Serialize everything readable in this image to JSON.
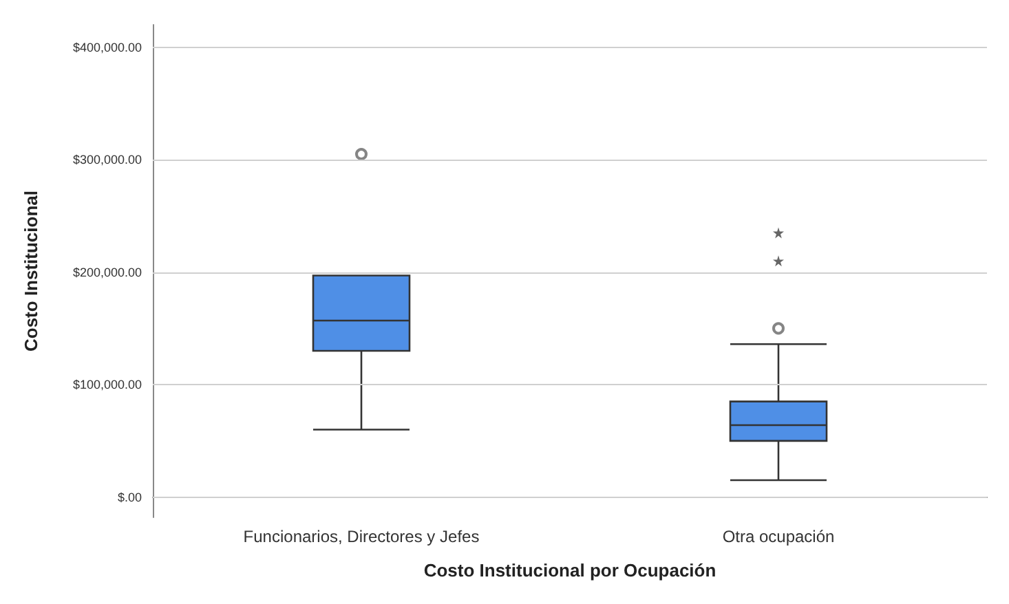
{
  "chart_data": {
    "type": "box",
    "xlabel": "Costo Institucional por Ocupación",
    "ylabel": "Costo Institucional",
    "categories": [
      "Funcionarios, Directores y Jefes",
      "Otra ocupación"
    ],
    "series": [
      {
        "type": "box",
        "color": "#4f8fe6",
        "boxes": [
          {
            "low": 60000,
            "q1": 130000,
            "median": 157000,
            "q3": 197000,
            "high": 197000,
            "outliers": [
              305000
            ]
          },
          {
            "low": 15000,
            "q1": 50000,
            "median": 64000,
            "q3": 85000,
            "high": 136000,
            "outliers": [
              150000
            ]
          }
        ]
      },
      {
        "type": "scatter",
        "marker": "star",
        "color": "#404040",
        "x": [
          "Otra ocupación",
          "Otra ocupación"
        ],
        "values": [
          235000,
          210000
        ]
      }
    ],
    "ylim": [
      -18000,
      420000
    ],
    "yticks": [
      {
        "value": 0,
        "label": "$.00"
      },
      {
        "value": 100000,
        "label": "$100,000.00"
      },
      {
        "value": 200000,
        "label": "$200,000.00"
      },
      {
        "value": 300000,
        "label": "$300,000.00"
      },
      {
        "value": 400000,
        "label": "$400,000.00"
      }
    ],
    "grid": "y"
  }
}
